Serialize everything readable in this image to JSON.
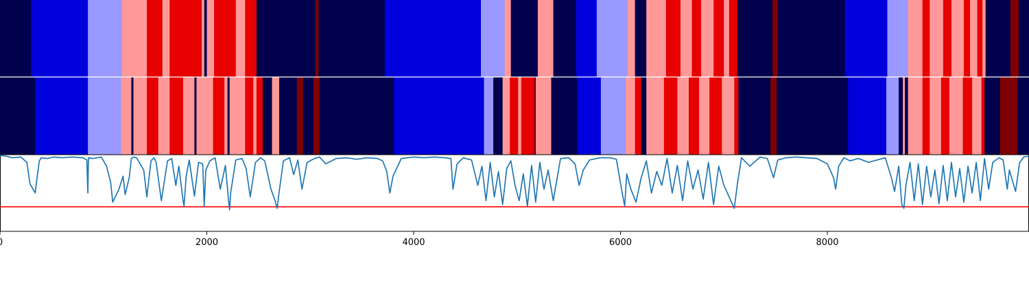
{
  "chart_data": [
    {
      "type": "heatmap",
      "name": "top-segment-track",
      "xlim": [
        0,
        9950
      ],
      "categories_colors": {
        "0": "#00004c",
        "1": "#0000dd",
        "2": "#9999ff",
        "3": "#ff9999",
        "4": "#e60000",
        "5": "#7f0000"
      },
      "segments": [
        [
          0,
          300,
          0
        ],
        [
          300,
          850,
          1
        ],
        [
          850,
          1180,
          2
        ],
        [
          1180,
          1420,
          3
        ],
        [
          1420,
          1570,
          4
        ],
        [
          1570,
          1640,
          3
        ],
        [
          1640,
          1950,
          4
        ],
        [
          1950,
          1975,
          3
        ],
        [
          1975,
          2000,
          0
        ],
        [
          2000,
          2070,
          3
        ],
        [
          2070,
          2280,
          4
        ],
        [
          2280,
          2370,
          3
        ],
        [
          2370,
          2480,
          4
        ],
        [
          2480,
          3050,
          0
        ],
        [
          3050,
          3080,
          5
        ],
        [
          3080,
          3720,
          0
        ],
        [
          3720,
          4650,
          1
        ],
        [
          4650,
          4880,
          2
        ],
        [
          4880,
          4940,
          3
        ],
        [
          4940,
          5200,
          0
        ],
        [
          5200,
          5350,
          3
        ],
        [
          5350,
          5570,
          0
        ],
        [
          5570,
          5770,
          1
        ],
        [
          5770,
          6070,
          2
        ],
        [
          6070,
          6140,
          3
        ],
        [
          6140,
          6250,
          0
        ],
        [
          6250,
          6440,
          3
        ],
        [
          6440,
          6580,
          4
        ],
        [
          6580,
          6690,
          3
        ],
        [
          6690,
          6780,
          4
        ],
        [
          6780,
          6900,
          3
        ],
        [
          6900,
          7000,
          4
        ],
        [
          7000,
          7050,
          3
        ],
        [
          7050,
          7130,
          4
        ],
        [
          7130,
          7470,
          0
        ],
        [
          7470,
          7520,
          5
        ],
        [
          7520,
          8170,
          0
        ],
        [
          8170,
          8580,
          1
        ],
        [
          8580,
          8780,
          2
        ],
        [
          8780,
          8920,
          3
        ],
        [
          8920,
          8990,
          4
        ],
        [
          8990,
          9120,
          3
        ],
        [
          9120,
          9200,
          4
        ],
        [
          9200,
          9320,
          3
        ],
        [
          9320,
          9380,
          4
        ],
        [
          9380,
          9450,
          3
        ],
        [
          9450,
          9500,
          4
        ],
        [
          9500,
          9530,
          3
        ],
        [
          9530,
          9770,
          0
        ],
        [
          9770,
          9850,
          5
        ],
        [
          9850,
          9950,
          0
        ]
      ]
    },
    {
      "type": "heatmap",
      "name": "middle-segment-track",
      "xlim": [
        0,
        9950
      ],
      "segments": [
        [
          0,
          340,
          0
        ],
        [
          340,
          850,
          1
        ],
        [
          850,
          1170,
          2
        ],
        [
          1170,
          1270,
          3
        ],
        [
          1270,
          1290,
          0
        ],
        [
          1290,
          1420,
          3
        ],
        [
          1420,
          1530,
          4
        ],
        [
          1530,
          1640,
          3
        ],
        [
          1640,
          1770,
          4
        ],
        [
          1770,
          1880,
          3
        ],
        [
          1880,
          1900,
          0
        ],
        [
          1900,
          2060,
          3
        ],
        [
          2060,
          2170,
          4
        ],
        [
          2170,
          2200,
          3
        ],
        [
          2200,
          2220,
          0
        ],
        [
          2220,
          2370,
          3
        ],
        [
          2370,
          2450,
          4
        ],
        [
          2450,
          2480,
          3
        ],
        [
          2480,
          2540,
          4
        ],
        [
          2540,
          2630,
          0
        ],
        [
          2630,
          2700,
          3
        ],
        [
          2700,
          2870,
          0
        ],
        [
          2870,
          2930,
          5
        ],
        [
          2930,
          3030,
          0
        ],
        [
          3030,
          3090,
          5
        ],
        [
          3090,
          3810,
          0
        ],
        [
          3810,
          4680,
          1
        ],
        [
          4680,
          4770,
          2
        ],
        [
          4770,
          4860,
          0
        ],
        [
          4860,
          4930,
          3
        ],
        [
          4930,
          5010,
          4
        ],
        [
          5010,
          5040,
          3
        ],
        [
          5040,
          5170,
          4
        ],
        [
          5170,
          5180,
          0
        ],
        [
          5180,
          5330,
          3
        ],
        [
          5330,
          5580,
          0
        ],
        [
          5580,
          5810,
          1
        ],
        [
          5810,
          6050,
          2
        ],
        [
          6050,
          6140,
          3
        ],
        [
          6140,
          6200,
          4
        ],
        [
          6200,
          6250,
          0
        ],
        [
          6250,
          6420,
          3
        ],
        [
          6420,
          6550,
          4
        ],
        [
          6550,
          6660,
          3
        ],
        [
          6660,
          6760,
          4
        ],
        [
          6760,
          6860,
          3
        ],
        [
          6860,
          6980,
          4
        ],
        [
          6980,
          7100,
          3
        ],
        [
          7100,
          7140,
          4
        ],
        [
          7140,
          7450,
          0
        ],
        [
          7450,
          7510,
          5
        ],
        [
          7510,
          8200,
          0
        ],
        [
          8200,
          8570,
          1
        ],
        [
          8570,
          8690,
          2
        ],
        [
          8690,
          8730,
          0
        ],
        [
          8730,
          8750,
          3
        ],
        [
          8750,
          8780,
          0
        ],
        [
          8780,
          8920,
          3
        ],
        [
          8920,
          8990,
          4
        ],
        [
          8990,
          9100,
          3
        ],
        [
          9100,
          9180,
          4
        ],
        [
          9180,
          9310,
          3
        ],
        [
          9310,
          9400,
          4
        ],
        [
          9400,
          9490,
          3
        ],
        [
          9490,
          9520,
          4
        ],
        [
          9520,
          9670,
          0
        ],
        [
          9670,
          9840,
          5
        ],
        [
          9840,
          9950,
          0
        ]
      ]
    },
    {
      "type": "line",
      "name": "signal-track",
      "xlim": [
        0,
        9950
      ],
      "ylim": [
        0.0,
        1.0
      ],
      "threshold": 0.32,
      "threshold_color": "#ff0000",
      "line_color": "#1f77b4",
      "x_ticks": [
        0,
        2000,
        4000,
        6000,
        8000
      ],
      "x_tick_labels": [
        "0",
        "2000",
        "4000",
        "6000",
        "8000"
      ],
      "series": [
        {
          "x": [
            0,
            60,
            120,
            200,
            260,
            290,
            320,
            340,
            360,
            380,
            400,
            460,
            520,
            600,
            700,
            800,
            840,
            850,
            855,
            900,
            980,
            1030,
            1070,
            1090,
            1150,
            1190,
            1210,
            1250,
            1270,
            1290,
            1320,
            1390,
            1420,
            1460,
            1490,
            1510,
            1560,
            1620,
            1660,
            1700,
            1730,
            1770,
            1780,
            1800,
            1830,
            1880,
            1920,
            1960,
            1975,
            1990,
            2030,
            2080,
            2130,
            2180,
            2210,
            2220,
            2230,
            2280,
            2340,
            2380,
            2420,
            2470,
            2520,
            2560,
            2620,
            2660,
            2680,
            2700,
            2740,
            2800,
            2840,
            2880,
            2920,
            2970,
            3040,
            3090,
            3150,
            3250,
            3350,
            3450,
            3550,
            3650,
            3700,
            3740,
            3770,
            3800,
            3880,
            4000,
            4100,
            4200,
            4300,
            4360,
            4380,
            4420,
            4480,
            4560,
            4620,
            4660,
            4700,
            4740,
            4780,
            4820,
            4860,
            4900,
            4940,
            4980,
            5020,
            5060,
            5100,
            5140,
            5180,
            5220,
            5260,
            5300,
            5350,
            5420,
            5500,
            5560,
            5600,
            5640,
            5700,
            5800,
            5900,
            5960,
            6010,
            6040,
            6060,
            6100,
            6150,
            6200,
            6250,
            6300,
            6350,
            6400,
            6450,
            6500,
            6550,
            6600,
            6650,
            6700,
            6750,
            6800,
            6850,
            6900,
            6950,
            7000,
            7050,
            7100,
            7130,
            7170,
            7250,
            7350,
            7420,
            7480,
            7520,
            7600,
            7700,
            7800,
            7900,
            8000,
            8060,
            8080,
            8110,
            8160,
            8220,
            8300,
            8400,
            8480,
            8560,
            8620,
            8650,
            8690,
            8720,
            8740,
            8760,
            8800,
            8840,
            8880,
            8920,
            8960,
            9000,
            9040,
            9080,
            9120,
            9160,
            9200,
            9240,
            9280,
            9320,
            9360,
            9400,
            9440,
            9480,
            9520,
            9560,
            9600,
            9660,
            9700,
            9740,
            9760,
            9820,
            9860,
            9900,
            9950
          ],
          "y": [
            0.99,
            0.98,
            0.96,
            0.97,
            0.9,
            0.62,
            0.55,
            0.5,
            0.72,
            0.92,
            0.96,
            0.95,
            0.97,
            0.96,
            0.97,
            0.96,
            0.93,
            0.5,
            0.96,
            0.95,
            0.97,
            0.85,
            0.64,
            0.38,
            0.55,
            0.72,
            0.48,
            0.7,
            0.95,
            0.97,
            0.96,
            0.8,
            0.45,
            0.92,
            0.96,
            0.9,
            0.4,
            0.92,
            0.95,
            0.6,
            0.85,
            0.4,
            0.33,
            0.72,
            0.93,
            0.46,
            0.9,
            0.88,
            0.33,
            0.8,
            0.92,
            0.96,
            0.55,
            0.86,
            0.4,
            0.28,
            0.5,
            0.93,
            0.95,
            0.82,
            0.45,
            0.9,
            0.96,
            0.92,
            0.55,
            0.4,
            0.3,
            0.52,
            0.92,
            0.96,
            0.74,
            0.93,
            0.55,
            0.9,
            0.95,
            0.97,
            0.88,
            0.95,
            0.96,
            0.94,
            0.96,
            0.95,
            0.92,
            0.78,
            0.5,
            0.72,
            0.95,
            0.97,
            0.96,
            0.97,
            0.96,
            0.95,
            0.55,
            0.88,
            0.96,
            0.93,
            0.6,
            0.85,
            0.4,
            0.9,
            0.45,
            0.78,
            0.35,
            0.82,
            0.92,
            0.6,
            0.4,
            0.75,
            0.33,
            0.86,
            0.38,
            0.9,
            0.55,
            0.8,
            0.4,
            0.95,
            0.96,
            0.88,
            0.6,
            0.8,
            0.93,
            0.96,
            0.96,
            0.94,
            0.55,
            0.33,
            0.75,
            0.55,
            0.38,
            0.7,
            0.92,
            0.5,
            0.78,
            0.6,
            0.95,
            0.5,
            0.86,
            0.4,
            0.92,
            0.55,
            0.8,
            0.42,
            0.9,
            0.35,
            0.85,
            0.6,
            0.45,
            0.3,
            0.62,
            0.96,
            0.85,
            0.97,
            0.95,
            0.7,
            0.93,
            0.96,
            0.97,
            0.96,
            0.95,
            0.88,
            0.7,
            0.55,
            0.85,
            0.96,
            0.92,
            0.95,
            0.9,
            0.93,
            0.96,
            0.7,
            0.52,
            0.85,
            0.35,
            0.3,
            0.6,
            0.9,
            0.4,
            0.88,
            0.35,
            0.85,
            0.45,
            0.8,
            0.36,
            0.86,
            0.4,
            0.9,
            0.45,
            0.82,
            0.38,
            0.85,
            0.5,
            0.9,
            0.4,
            0.95,
            0.55,
            0.9,
            0.96,
            0.93,
            0.55,
            0.8,
            0.52,
            0.9,
            0.97,
            0.98
          ]
        }
      ]
    }
  ]
}
